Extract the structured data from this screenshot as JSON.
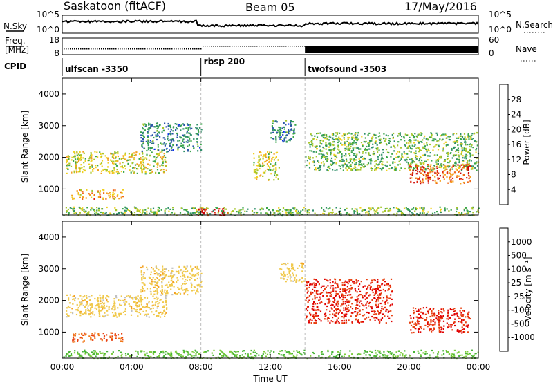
{
  "header": {
    "site": "Saskatoon (fitACF)",
    "beam": "Beam 05",
    "date": "17/May/2016"
  },
  "left_labels": {
    "nsky": "N.Sky",
    "freq_line1": "Freq.",
    "freq_line2": "[MHz]",
    "cpid": "CPID"
  },
  "right_labels": {
    "nsearch": "N.Search",
    "nave": "Nave"
  },
  "noise_axis": {
    "top": "10^5",
    "bottom": "10^0"
  },
  "freq_axis": {
    "top": "18",
    "bottom": "8"
  },
  "nave_axis": {
    "top": "60",
    "bottom": "0"
  },
  "cpid_segments": [
    {
      "label": "ulfscan -3350",
      "start_hour": 0
    },
    {
      "label": "rbsp 200",
      "start_hour": 8
    },
    {
      "label": "twofsound -3503",
      "start_hour": 14
    }
  ],
  "power_colorbar": {
    "title": "Power [dB]",
    "ticks": [
      "4",
      "8",
      "12",
      "16",
      "20",
      "24",
      "28"
    ],
    "colors": [
      "#0b2ff0",
      "#2a55a8",
      "#2f8f6a",
      "#3aa64a",
      "#a6c62c",
      "#f0d020",
      "#f4a020",
      "#f06a18",
      "#e02a10",
      "#c80008"
    ]
  },
  "velocity_colorbar": {
    "title": "Velocity [m s⁻¹]",
    "ticks": [
      "1000",
      "500",
      "100",
      "25",
      "-25",
      "-100",
      "-500",
      "-1000"
    ],
    "colors": [
      "#1a2fa8",
      "#2a6aa8",
      "#2e8f5a",
      "#46b436",
      "#7ccc3a",
      "#c0c0c0",
      "#f0c84a",
      "#f4a020",
      "#f07818",
      "#e84010",
      "#e00000"
    ]
  },
  "chart_data": {
    "type": "heatmap",
    "xlabel": "Time UT",
    "ylabel": "Slant Range [km]",
    "x_tick_labels": [
      "00:00",
      "04:00",
      "08:00",
      "12:00",
      "16:00",
      "20:00",
      "00:00"
    ],
    "x_range_hours": [
      0,
      24
    ],
    "y_ticks": [
      1000,
      2000,
      3000,
      4000
    ],
    "y_range_km": [
      180,
      4500
    ],
    "panels": [
      {
        "name": "Power",
        "unit": "dB",
        "regions": [
          {
            "t0": 0.2,
            "t1": 6.0,
            "r0": 1500,
            "r1": 2200,
            "value": 16
          },
          {
            "t0": 4.5,
            "t1": 8.0,
            "r0": 2200,
            "r1": 3100,
            "value": 8
          },
          {
            "t0": 0.5,
            "t1": 3.5,
            "r0": 700,
            "r1": 1000,
            "value": 20
          },
          {
            "t0": 0.0,
            "t1": 24.0,
            "r0": 180,
            "r1": 450,
            "value": 12
          },
          {
            "t0": 7.8,
            "t1": 9.5,
            "r0": 180,
            "r1": 400,
            "value": 28
          },
          {
            "t0": 12.0,
            "t1": 13.5,
            "r0": 2500,
            "r1": 3200,
            "value": 8
          },
          {
            "t0": 11.0,
            "t1": 12.5,
            "r0": 1300,
            "r1": 2200,
            "value": 16
          },
          {
            "t0": 14.0,
            "t1": 24.0,
            "r0": 1600,
            "r1": 2800,
            "value": 12
          },
          {
            "t0": 20.0,
            "t1": 23.5,
            "r0": 1200,
            "r1": 1800,
            "value": 24
          }
        ]
      },
      {
        "name": "Velocity",
        "unit": "m s^-1",
        "regions": [
          {
            "t0": 0.2,
            "t1": 6.0,
            "r0": 1500,
            "r1": 2200,
            "value": 0
          },
          {
            "t0": 4.5,
            "t1": 8.0,
            "r0": 2200,
            "r1": 3100,
            "value": 0
          },
          {
            "t0": 0.5,
            "t1": 3.5,
            "r0": 700,
            "r1": 1000,
            "value": -100
          },
          {
            "t0": 0.0,
            "t1": 24.0,
            "r0": 180,
            "r1": 450,
            "value": 100
          },
          {
            "t0": 14.0,
            "t1": 19.0,
            "r0": 1300,
            "r1": 2700,
            "value": -500
          },
          {
            "t0": 20.0,
            "t1": 23.5,
            "r0": 1000,
            "r1": 1800,
            "value": -500
          },
          {
            "t0": 12.5,
            "t1": 14.0,
            "r0": 2600,
            "r1": 3200,
            "value": 0
          }
        ]
      }
    ]
  }
}
